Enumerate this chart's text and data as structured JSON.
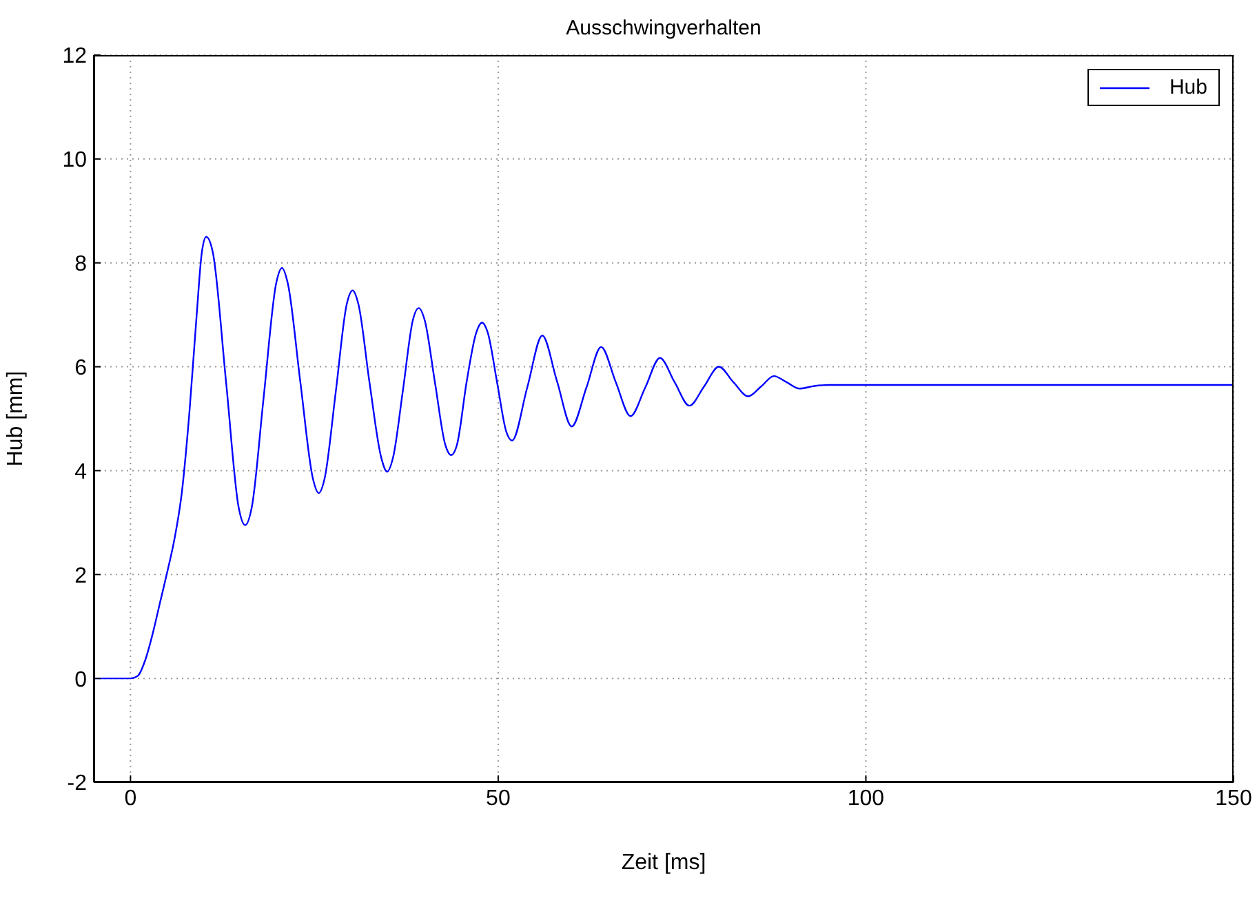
{
  "chart_data": {
    "type": "line",
    "title": "Ausschwingverhalten",
    "xlabel": "Zeit [ms]",
    "ylabel": "Hub [mm]",
    "xlim": [
      -5,
      150
    ],
    "xticks": [
      0,
      50,
      100,
      150
    ],
    "ylim": [
      -2,
      12
    ],
    "yticks": [
      -2,
      0,
      2,
      4,
      6,
      8,
      10,
      12
    ],
    "grid": true,
    "legend": "top right",
    "line_style": "solid",
    "marker": "none",
    "series": [
      {
        "name": "Hub",
        "color": "#0000ff",
        "x": [
          -5,
          0,
          1,
          2,
          3,
          4,
          5,
          6,
          7,
          8,
          9,
          9.7,
          10.3,
          11.2,
          13,
          14.7,
          15.6,
          16.5,
          18.1,
          19.8,
          20.6,
          21.4,
          23.1,
          24.8,
          25.6,
          26.4,
          27.9,
          29.4,
          30.2,
          31,
          32.5,
          34.1,
          34.9,
          35.7,
          37.05,
          38.4,
          39.2,
          40,
          41.4,
          42.8,
          43.6,
          44.4,
          45.7,
          47,
          47.8,
          48.6,
          49.85,
          51.1,
          51.9,
          53.95,
          56,
          58,
          60,
          62,
          64,
          66,
          68,
          70,
          72,
          74,
          76,
          78,
          80,
          82,
          84,
          85.75,
          87.5,
          89.25,
          91,
          93,
          95,
          150
        ],
        "values": [
          0,
          0,
          0.05,
          0.35,
          0.85,
          1.45,
          2.05,
          2.7,
          3.6,
          5.1,
          7.0,
          8.2,
          8.5,
          8.2,
          5.7,
          3.3,
          2.95,
          3.3,
          5.4,
          7.6,
          7.9,
          7.6,
          5.7,
          3.85,
          3.57,
          3.85,
          5.5,
          7.2,
          7.47,
          7.2,
          5.7,
          4.25,
          3.98,
          4.25,
          5.55,
          6.9,
          7.13,
          6.9,
          5.7,
          4.5,
          4.3,
          4.5,
          5.7,
          6.65,
          6.85,
          6.65,
          5.7,
          4.75,
          4.58,
          5.6,
          6.6,
          5.72,
          4.85,
          5.6,
          6.38,
          5.7,
          5.05,
          5.6,
          6.17,
          5.7,
          5.25,
          5.62,
          6.0,
          5.7,
          5.43,
          5.62,
          5.82,
          5.7,
          5.58,
          5.63,
          5.65,
          5.65
        ]
      }
    ]
  }
}
